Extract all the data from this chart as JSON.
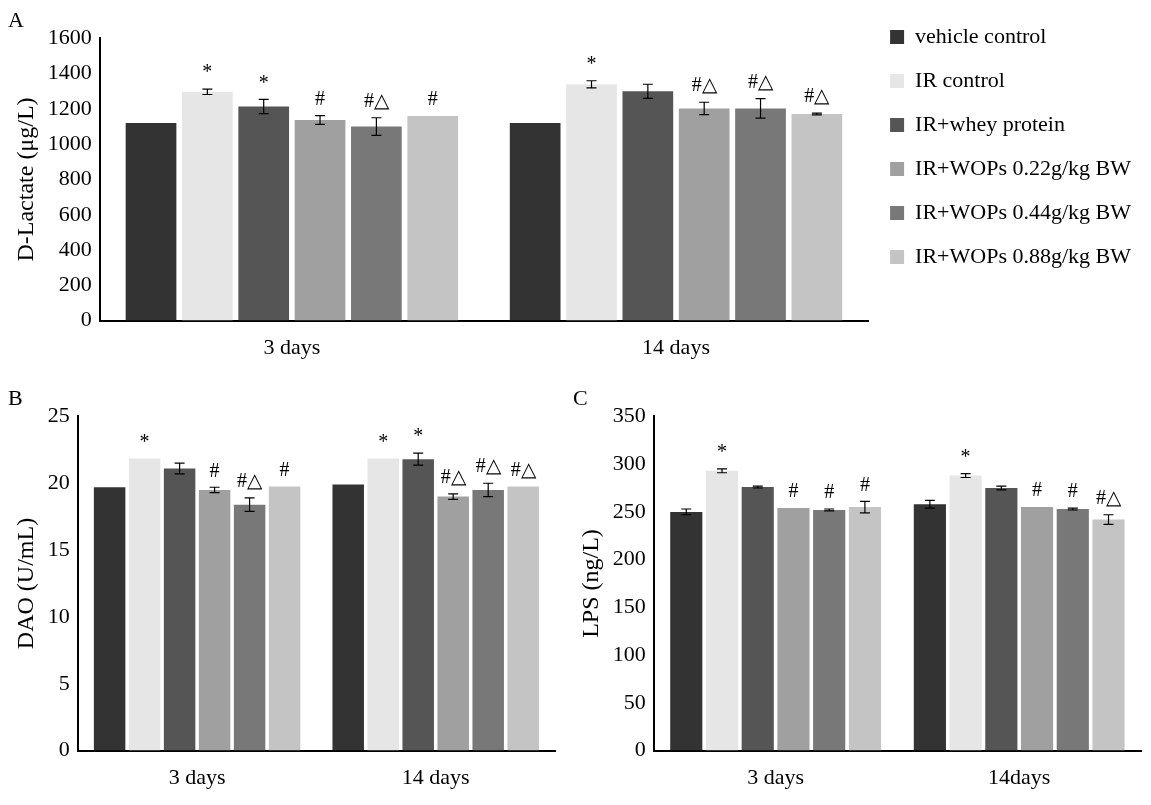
{
  "chart_data": [
    {
      "type": "bar",
      "title": "A",
      "ylabel": "D-Lactate (μg/L)",
      "categories": [
        "3 days",
        "14 days"
      ],
      "ylim": [
        0,
        1600
      ],
      "yticks": [
        0,
        200,
        400,
        600,
        800,
        1000,
        1200,
        1400,
        1600
      ],
      "grid": false,
      "legend": "right",
      "series": [
        {
          "name": "vehicle control",
          "color": "#333333",
          "values": [
            1120,
            1120
          ],
          "errors": [
            null,
            null
          ],
          "value_labels": [
            null,
            null
          ]
        },
        {
          "name": "IR control",
          "color": "#e6e6e6",
          "values": [
            1297,
            1340
          ],
          "errors": [
            15,
            20
          ],
          "value_labels": [
            "*",
            "*"
          ]
        },
        {
          "name": "IR+whey protein",
          "color": "#555555",
          "values": [
            1214,
            1300
          ],
          "errors": [
            40,
            40
          ],
          "value_labels": [
            "*",
            null
          ]
        },
        {
          "name": "IR+WOPs 0.22g/kg BW",
          "color": "#a0a0a0",
          "values": [
            1137,
            1203
          ],
          "errors": [
            25,
            35
          ],
          "value_labels": [
            "#",
            "#△"
          ]
        },
        {
          "name": "IR+WOPs 0.44g/kg BW",
          "color": "#787878",
          "values": [
            1100,
            1203
          ],
          "errors": [
            50,
            55
          ],
          "value_labels": [
            "#△",
            "#△"
          ]
        },
        {
          "name": "IR+WOPs 0.88g/kg BW",
          "color": "#c4c4c4",
          "values": [
            1160,
            1171
          ],
          "errors": [
            null,
            5
          ],
          "value_labels": [
            "#",
            "#△"
          ]
        }
      ]
    },
    {
      "type": "bar",
      "title": "B",
      "ylabel": "DAO (U/mL)",
      "categories": [
        "3 days",
        "14 days"
      ],
      "ylim": [
        0,
        25
      ],
      "yticks": [
        0,
        5,
        10,
        15,
        20,
        25
      ],
      "grid": false,
      "series": [
        {
          "color": "#333333",
          "values": [
            19.7,
            19.9
          ],
          "errors": [
            null,
            null
          ],
          "value_labels": [
            null,
            null
          ]
        },
        {
          "color": "#e6e6e6",
          "values": [
            21.85,
            21.85
          ],
          "errors": [
            null,
            null
          ],
          "value_labels": [
            "*",
            "*"
          ]
        },
        {
          "color": "#555555",
          "values": [
            21.1,
            21.8
          ],
          "errors": [
            0.4,
            0.45
          ],
          "value_labels": [
            null,
            "*"
          ]
        },
        {
          "color": "#a0a0a0",
          "values": [
            19.5,
            19.0
          ],
          "errors": [
            0.2,
            0.2
          ],
          "value_labels": [
            "#",
            "#△"
          ]
        },
        {
          "color": "#787878",
          "values": [
            18.4,
            19.5
          ],
          "errors": [
            0.5,
            0.5
          ],
          "value_labels": [
            "#△",
            "#△"
          ]
        },
        {
          "color": "#c4c4c4",
          "values": [
            19.75,
            19.75
          ],
          "errors": [
            null,
            null
          ],
          "value_labels": [
            "#",
            "#△"
          ]
        }
      ]
    },
    {
      "type": "bar",
      "title": "C",
      "ylabel": "LPS (ng/L)",
      "categories": [
        "3 days",
        "14days"
      ],
      "ylim": [
        0,
        350
      ],
      "yticks": [
        0,
        50,
        100,
        150,
        200,
        250,
        300,
        350
      ],
      "grid": false,
      "series": [
        {
          "color": "#333333",
          "values": [
            250,
            258
          ],
          "errors": [
            3,
            4
          ],
          "value_labels": [
            null,
            null
          ]
        },
        {
          "color": "#e6e6e6",
          "values": [
            293,
            288
          ],
          "errors": [
            2,
            2
          ],
          "value_labels": [
            "*",
            "*"
          ]
        },
        {
          "color": "#555555",
          "values": [
            276,
            275
          ],
          "errors": [
            1,
            2
          ],
          "value_labels": [
            null,
            null
          ]
        },
        {
          "color": "#a0a0a0",
          "values": [
            254,
            255
          ],
          "errors": [
            null,
            null
          ],
          "value_labels": [
            "#",
            "#"
          ]
        },
        {
          "color": "#787878",
          "values": [
            252,
            253
          ],
          "errors": [
            1,
            1
          ],
          "value_labels": [
            "#",
            "#"
          ]
        },
        {
          "color": "#c4c4c4",
          "values": [
            255,
            242
          ],
          "errors": [
            6,
            5
          ],
          "value_labels": [
            "#",
            "#△"
          ]
        }
      ]
    }
  ]
}
